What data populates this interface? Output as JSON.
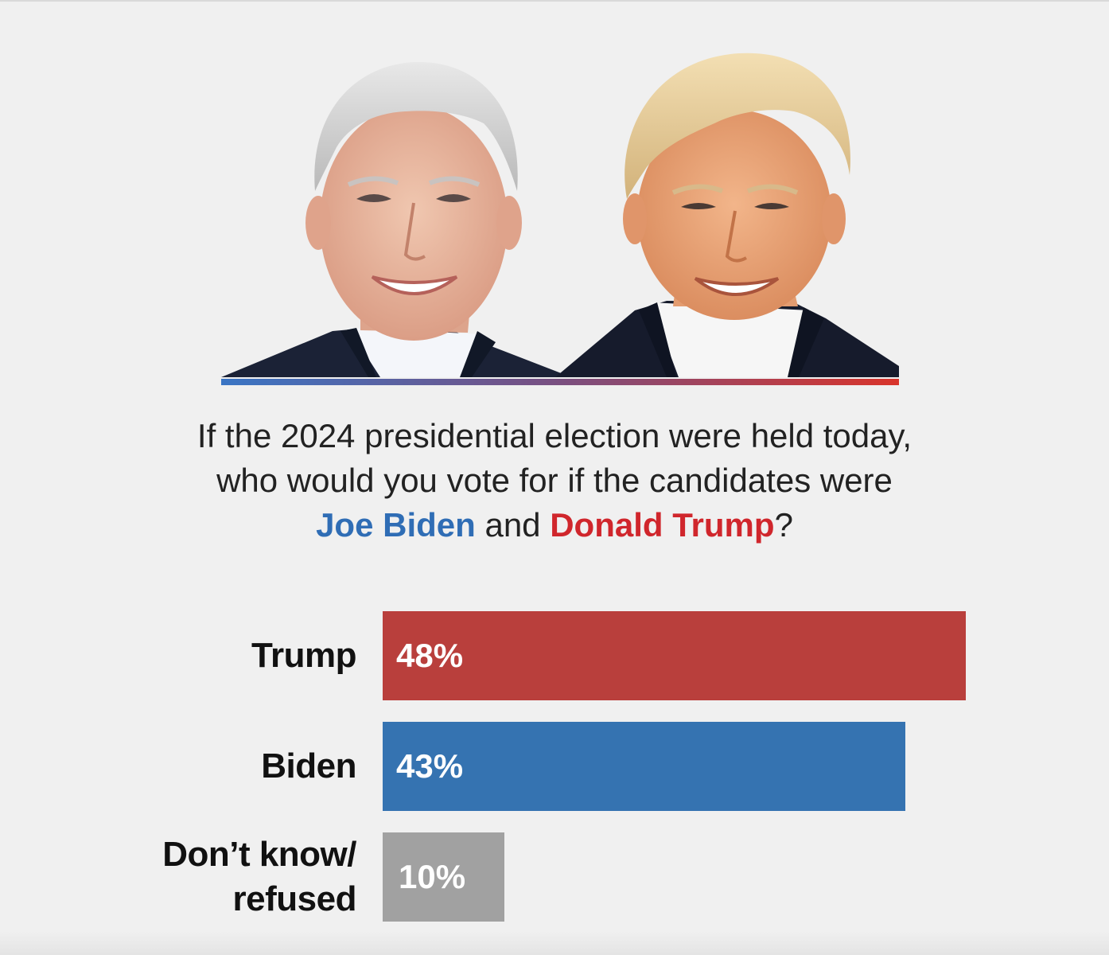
{
  "question": {
    "line1": "If the 2024 presidential election were held today,",
    "line2": "who would you vote for if the candidates were",
    "biden_name": "Joe Biden",
    "joiner": " and ",
    "trump_name": "Donald Trump",
    "end": "?"
  },
  "colors": {
    "background": "#f0f0f0",
    "trump_red": "#b93f3c",
    "trump_text_red": "#d0262c",
    "biden_blue": "#3573b1",
    "biden_text_blue": "#2f6db5",
    "other_gray": "#a1a1a1",
    "divider_blue": "#3a75c4",
    "divider_red": "#d9342b"
  },
  "portraits": {
    "left": "biden-portrait",
    "right": "trump-portrait"
  },
  "chart_data": {
    "type": "bar",
    "orientation": "horizontal",
    "categories": [
      "Trump",
      "Biden",
      "Don’t know/ refused"
    ],
    "category_lines": [
      [
        "Trump"
      ],
      [
        "Biden"
      ],
      [
        "Don’t know/",
        "refused"
      ]
    ],
    "values": [
      48,
      43,
      10
    ],
    "value_labels": [
      "48%",
      "43%",
      "10%"
    ],
    "colors": [
      "#b93f3c",
      "#3573b1",
      "#a1a1a1"
    ],
    "xlim": [
      0,
      48
    ],
    "grid": false
  }
}
